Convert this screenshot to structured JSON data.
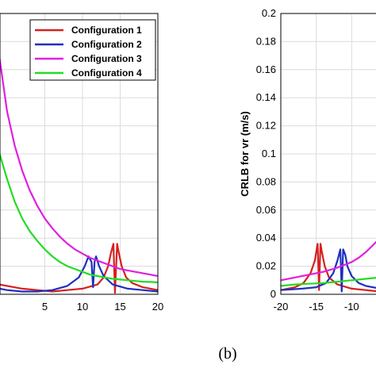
{
  "caption": "(b)",
  "colors": {
    "Configuration 1": "#d62020",
    "Configuration 2": "#1f2fbf",
    "Configuration 3": "#e020e0",
    "Configuration 4": "#22dd22"
  },
  "chart_data": [
    {
      "type": "line",
      "title": "",
      "xlabel": "",
      "ylabel": "",
      "xlim": [
        -2,
        20
      ],
      "ylim": [
        0,
        0.2
      ],
      "xticks": [
        5,
        10,
        15,
        20
      ],
      "grid": true,
      "legend": {
        "placement": "top-right"
      },
      "series": [
        {
          "name": "Configuration 1",
          "x": [
            -2,
            0,
            2,
            4,
            6,
            8,
            10,
            12,
            12.8,
            13.4,
            13.8,
            14.1,
            14.3,
            14.6,
            14.8,
            15.2,
            15.8,
            16.6,
            18,
            20
          ],
          "y": [
            0.008,
            0.006,
            0.004,
            0.003,
            0.002,
            0.003,
            0.004,
            0.007,
            0.012,
            0.02,
            0.03,
            0.036,
            0.001,
            0.036,
            0.03,
            0.02,
            0.012,
            0.008,
            0.005,
            0.003
          ]
        },
        {
          "name": "Configuration 2",
          "x": [
            -2,
            0,
            2,
            4,
            6,
            8,
            9.5,
            10.3,
            10.8,
            11.2,
            11.4,
            11.6,
            11.8,
            12.2,
            12.8,
            14,
            16,
            18,
            20
          ],
          "y": [
            0.005,
            0.003,
            0.002,
            0.002,
            0.003,
            0.006,
            0.012,
            0.02,
            0.027,
            0.023,
            0.005,
            0.023,
            0.027,
            0.02,
            0.013,
            0.007,
            0.004,
            0.003,
            0.002
          ]
        },
        {
          "name": "Configuration 3",
          "x": [
            -2,
            -1,
            0,
            1,
            2,
            3,
            4,
            5,
            6,
            7,
            8,
            9,
            10,
            11,
            12,
            13,
            14,
            15,
            16,
            17,
            18,
            19,
            20
          ],
          "y": [
            0.2,
            0.168,
            0.13,
            0.106,
            0.088,
            0.074,
            0.063,
            0.054,
            0.047,
            0.041,
            0.036,
            0.032,
            0.029,
            0.026,
            0.024,
            0.022,
            0.02,
            0.018,
            0.017,
            0.016,
            0.015,
            0.014,
            0.013
          ]
        },
        {
          "name": "Configuration 4",
          "x": [
            -2,
            -1,
            0,
            1,
            2,
            3,
            4,
            5,
            6,
            7,
            8,
            9,
            10,
            11,
            12,
            13,
            14,
            15,
            16,
            17,
            18,
            19,
            20
          ],
          "y": [
            0.13,
            0.1,
            0.082,
            0.066,
            0.054,
            0.045,
            0.038,
            0.032,
            0.027,
            0.023,
            0.02,
            0.018,
            0.016,
            0.014,
            0.013,
            0.012,
            0.011,
            0.0105,
            0.01,
            0.0095,
            0.009,
            0.0088,
            0.0085
          ]
        }
      ]
    },
    {
      "type": "line",
      "title": "",
      "xlabel": "",
      "ylabel": "CRLB for vr (m/s)",
      "xlim": [
        -20,
        -6
      ],
      "ylim": [
        0,
        0.2
      ],
      "xticks": [
        -20,
        -15,
        -10
      ],
      "yticks": [
        0,
        0.02,
        0.04,
        0.06,
        0.08,
        0.1,
        0.12,
        0.14,
        0.16,
        0.18,
        0.2
      ],
      "grid": true,
      "series": [
        {
          "name": "Configuration 1",
          "x": [
            -20,
            -18,
            -16.8,
            -15.8,
            -15.2,
            -14.8,
            -14.6,
            -14.4,
            -14.2,
            -13.8,
            -13.2,
            -12,
            -10,
            -8,
            -6
          ],
          "y": [
            0.003,
            0.005,
            0.008,
            0.015,
            0.024,
            0.036,
            0.003,
            0.036,
            0.03,
            0.02,
            0.012,
            0.007,
            0.004,
            0.003,
            0.002
          ]
        },
        {
          "name": "Configuration 2",
          "x": [
            -20,
            -17,
            -15,
            -13.6,
            -12.6,
            -12,
            -11.6,
            -11.4,
            -11.2,
            -10.9,
            -10.6,
            -10,
            -9,
            -8,
            -6
          ],
          "y": [
            0.003,
            0.004,
            0.005,
            0.008,
            0.015,
            0.024,
            0.032,
            0.002,
            0.032,
            0.028,
            0.02,
            0.013,
            0.008,
            0.006,
            0.004
          ]
        },
        {
          "name": "Configuration 3",
          "x": [
            -20,
            -18,
            -16,
            -14,
            -12,
            -10,
            -9,
            -8,
            -7,
            -6
          ],
          "y": [
            0.01,
            0.012,
            0.014,
            0.016,
            0.019,
            0.023,
            0.026,
            0.03,
            0.035,
            0.04
          ]
        },
        {
          "name": "Configuration 4",
          "x": [
            -20,
            -18,
            -16,
            -14,
            -12,
            -10,
            -8,
            -6
          ],
          "y": [
            0.006,
            0.007,
            0.0075,
            0.008,
            0.009,
            0.01,
            0.011,
            0.012
          ]
        }
      ]
    }
  ]
}
